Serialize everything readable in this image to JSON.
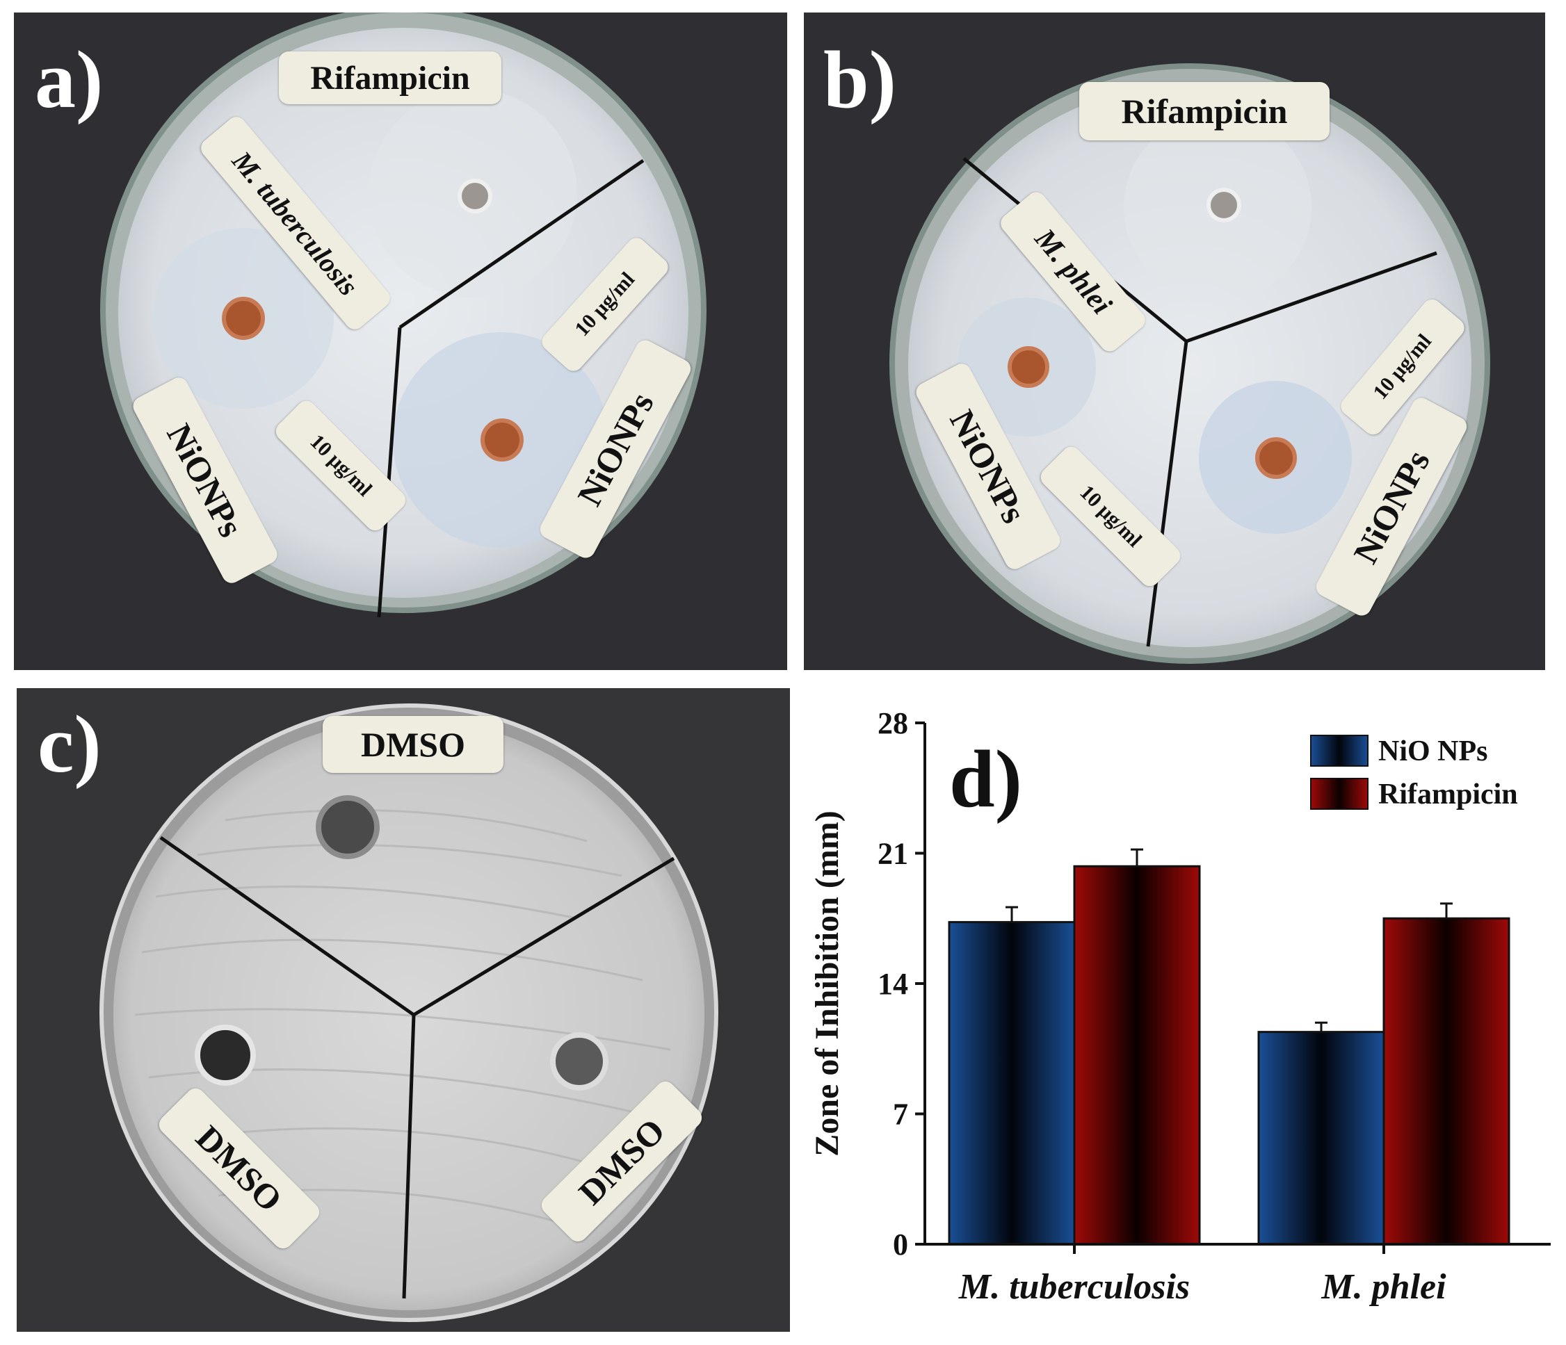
{
  "panels": {
    "a": {
      "letter": "a)",
      "labels": {
        "top": "Rifampicin",
        "organism": "M. tuberculosis",
        "conc_right": "10 μg/ml",
        "conc_left": "10 μg/ml",
        "np_left": "NiONPs",
        "np_right": "NiONPs"
      }
    },
    "b": {
      "letter": "b)",
      "labels": {
        "top": "Rifampicin",
        "organism": "M. phlei",
        "conc_right": "10 μg/ml",
        "conc_left": "10 μg/ml",
        "np_left": "NiONPs",
        "np_right": "NiONPs"
      }
    },
    "c": {
      "letter": "c)",
      "labels": {
        "top": "DMSO",
        "left": "DMSO",
        "right": "DMSO"
      }
    }
  },
  "chart_data": {
    "type": "bar",
    "panel_letter": "d)",
    "categories": [
      "M. tuberculosis",
      "M. phlei"
    ],
    "series": [
      {
        "name": "NiO NPs",
        "values": [
          17.3,
          11.4
        ],
        "errors": [
          0.8,
          0.5
        ]
      },
      {
        "name": "Rifampicin",
        "values": [
          20.3,
          17.5
        ],
        "errors": [
          0.9,
          0.8
        ]
      }
    ],
    "title": "",
    "xlabel": "",
    "ylabel": "Zone of Inhibition (mm)",
    "ylim": [
      0,
      28
    ],
    "yticks": [
      0,
      7,
      14,
      21,
      28
    ],
    "grid": false,
    "legend_position": "top-right",
    "colors": {
      "NiO NPs": "#1a4f96",
      "Rifampicin": "#9e0a08"
    }
  }
}
